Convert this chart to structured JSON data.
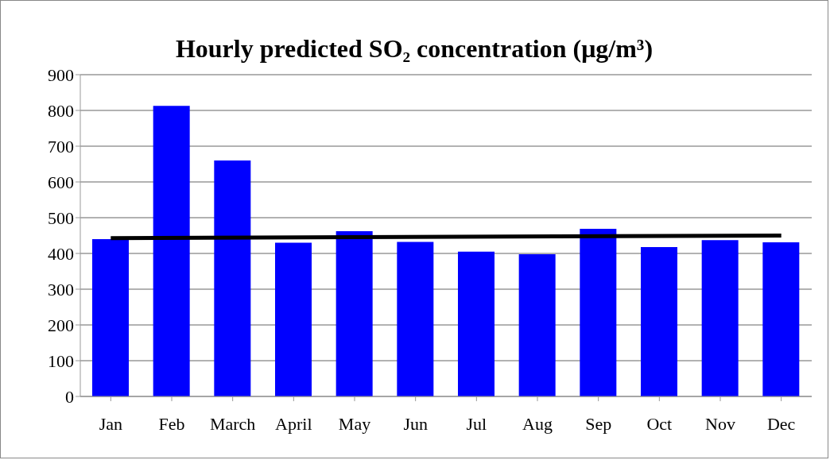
{
  "chart_data": {
    "type": "bar",
    "title": "Hourly predicted SO₂ concentration (μg/m³)",
    "categories": [
      "Jan",
      "Feb",
      "March",
      "April",
      "May",
      "Jun",
      "Jul",
      "Aug",
      "Sep",
      "Oct",
      "Nov",
      "Dec"
    ],
    "series": [
      {
        "color": "#0000ff",
        "values": [
          440,
          813,
          660,
          430,
          462,
          432,
          405,
          398,
          469,
          418,
          437,
          431
        ]
      },
      {
        "type": "line",
        "color": "#000000",
        "x": [
          "Jan",
          "Dec"
        ],
        "values": [
          443,
          450
        ],
        "marker": "none"
      }
    ],
    "ylim": [
      0,
      900
    ],
    "yticks": [
      0,
      100,
      200,
      300,
      400,
      500,
      600,
      700,
      800,
      900
    ],
    "grid": "y",
    "legend": false
  }
}
